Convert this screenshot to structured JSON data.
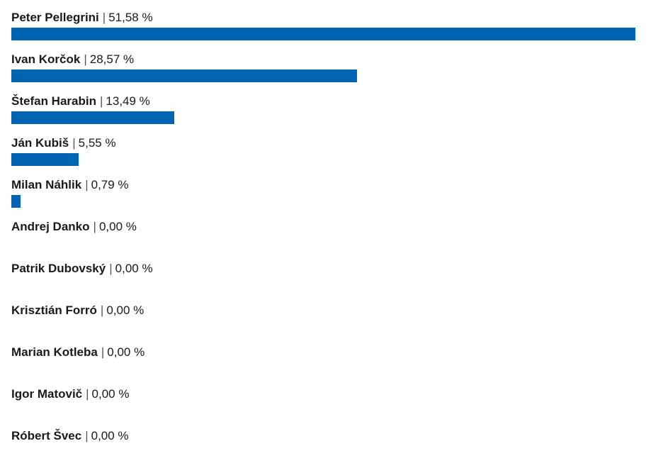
{
  "chart_data": {
    "type": "bar",
    "orientation": "horizontal",
    "categories": [
      "Peter Pellegrini",
      "Ivan Korčok",
      "Štefan Harabin",
      "Ján Kubiš",
      "Milan Náhlik",
      "Andrej Danko",
      "Patrik Dubovský",
      "Krisztián Forró",
      "Marian Kotleba",
      "Igor Matovič",
      "Róbert Švec"
    ],
    "values": [
      51.58,
      28.57,
      13.49,
      5.55,
      0.79,
      0.0,
      0.0,
      0.0,
      0.0,
      0.0,
      0.0
    ],
    "value_labels": [
      "51,58 %",
      "28,57 %",
      "13,49 %",
      "5,55 %",
      "0,79 %",
      "0,00 %",
      "0,00 %",
      "0,00 %",
      "0,00 %",
      "0,00 %",
      "0,00 %"
    ],
    "separator": "|",
    "bar_color": "#0064b0",
    "xlim": [
      0,
      51.58
    ],
    "grid": false,
    "legend": "none"
  }
}
